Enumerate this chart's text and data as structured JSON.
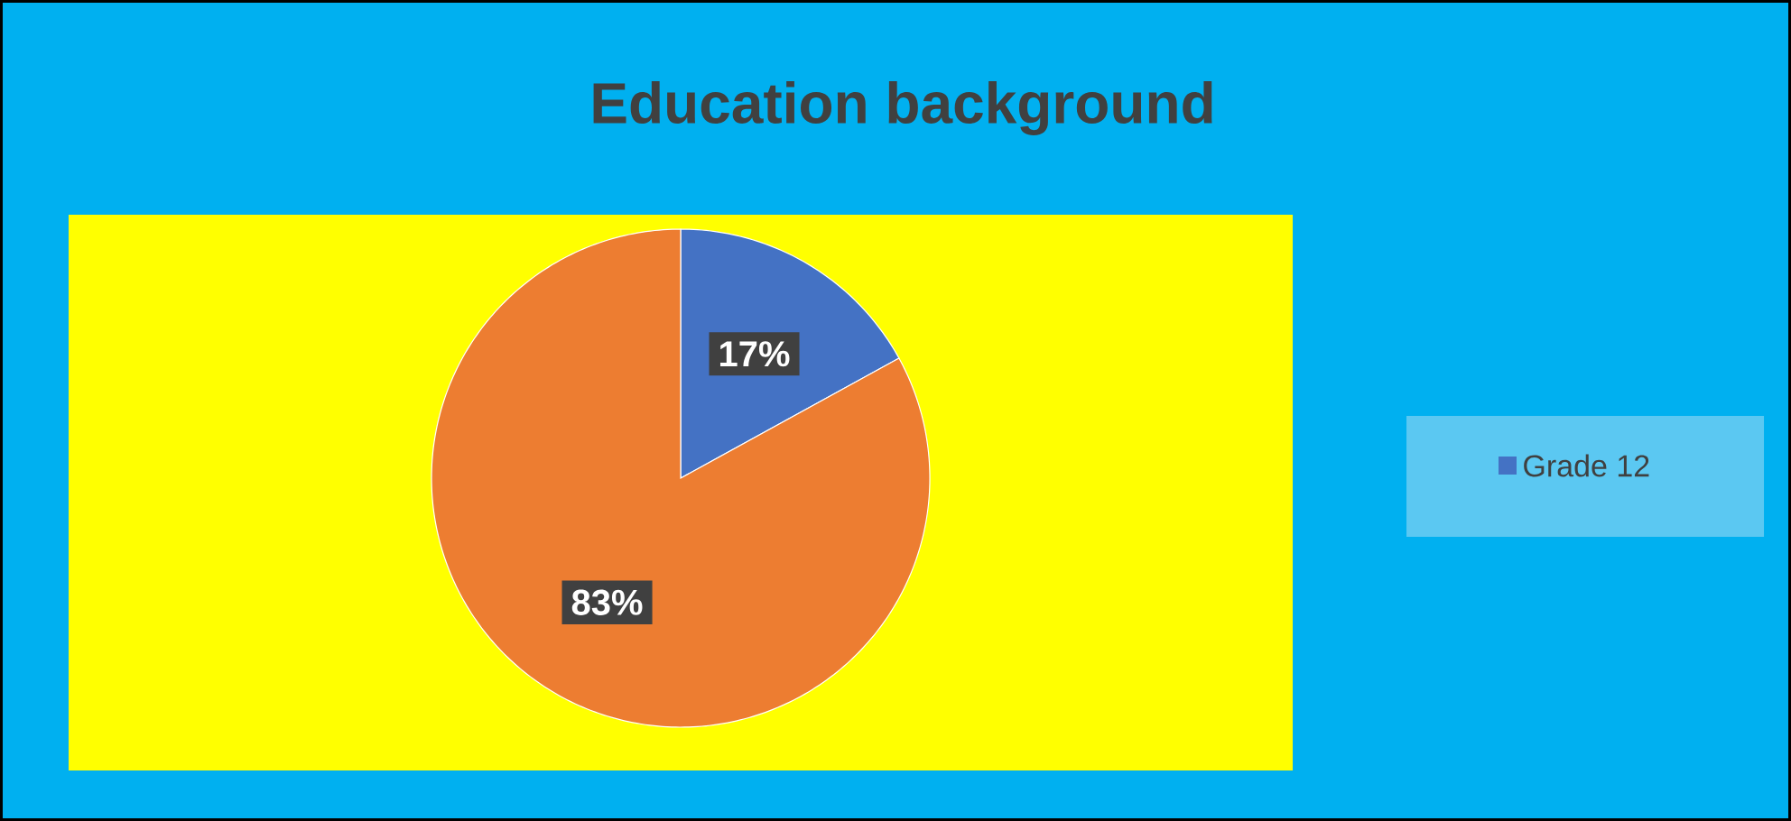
{
  "chart_data": {
    "type": "pie",
    "title": "Education background",
    "categories": [
      "Grade 12",
      null
    ],
    "values": [
      17,
      83
    ],
    "colors": [
      "#4472c4",
      "#ed7d31"
    ],
    "value_labels": [
      "17%",
      "83%"
    ],
    "legend": "right"
  }
}
